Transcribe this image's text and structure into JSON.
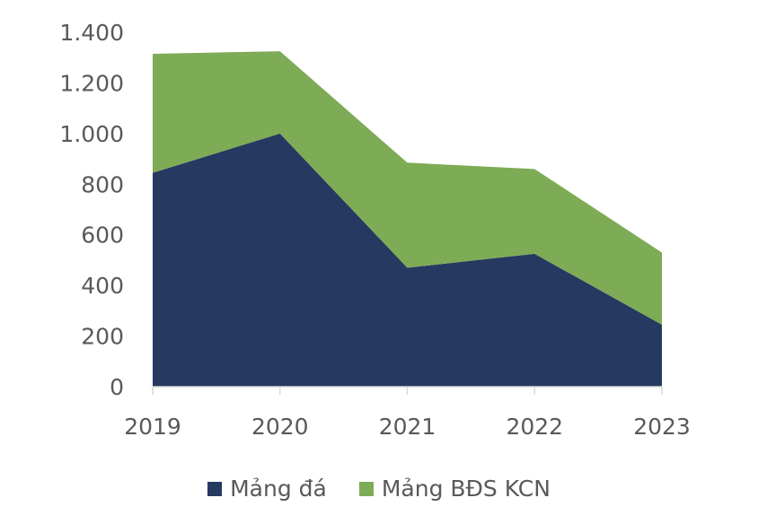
{
  "chart_data": {
    "type": "area",
    "stacked": true,
    "categories": [
      "2019",
      "2020",
      "2021",
      "2022",
      "2023"
    ],
    "series": [
      {
        "name": "Mảng đá",
        "color": "#263961",
        "values": [
          845,
          1000,
          470,
          525,
          245
        ]
      },
      {
        "name": "Mảng BĐS KCN",
        "color": "#7eab55",
        "values": [
          470,
          325,
          415,
          335,
          285
        ]
      }
    ],
    "ylim": [
      0,
      1400
    ],
    "yticks": [
      0,
      200,
      400,
      600,
      800,
      1000,
      1200,
      1400
    ],
    "ytick_labels": [
      "0",
      "200",
      "400",
      "600",
      "800",
      "1.000",
      "1.200",
      "1.400"
    ],
    "legend_position": "bottom",
    "title": "",
    "xlabel": "",
    "ylabel": ""
  }
}
